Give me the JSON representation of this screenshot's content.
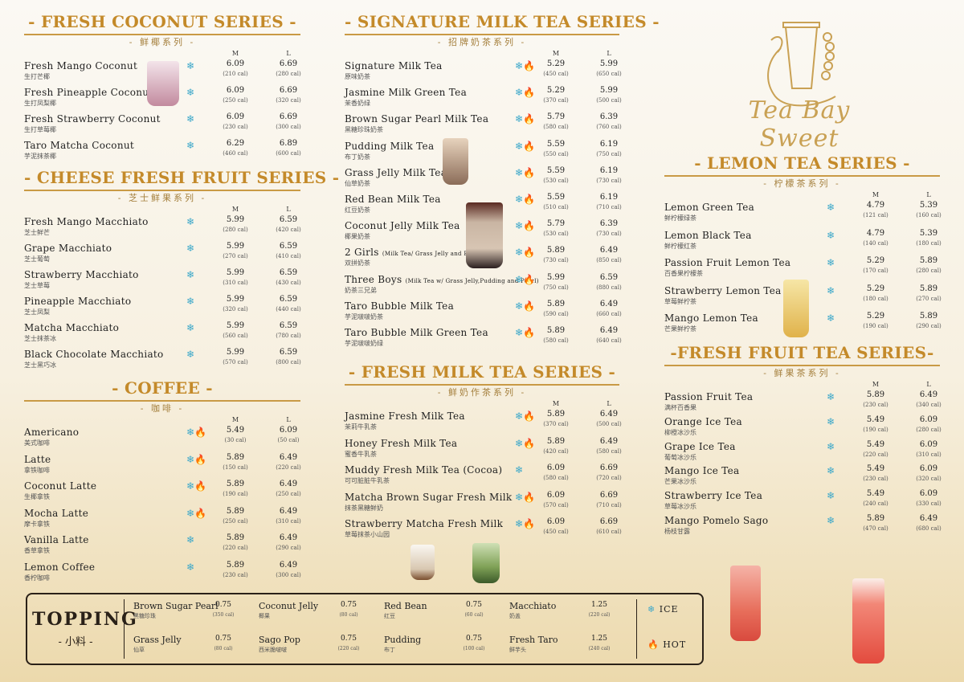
{
  "sections": {
    "coconut": {
      "title": "- FRESH COCONUT SERIES -",
      "subtitle": "- 鲜椰系列 -",
      "size_m": "M",
      "size_l": "L",
      "items": [
        {
          "en": "Fresh Mango Coconut",
          "zh": "生打芒椰",
          "pm": "6.09",
          "cm": "(210 cal)",
          "pl": "6.69",
          "cl": "(280 cal)",
          "icons": "❄"
        },
        {
          "en": "Fresh Pineapple Coconut",
          "zh": "生打凤梨椰",
          "pm": "6.09",
          "cm": "(250 cal)",
          "pl": "6.69",
          "cl": "(320 cal)",
          "icons": "❄"
        },
        {
          "en": "Fresh Strawberry Coconut",
          "zh": "生打草莓椰",
          "pm": "6.09",
          "cm": "(230 cal)",
          "pl": "6.69",
          "cl": "(300 cal)",
          "icons": "❄"
        },
        {
          "en": "Taro Matcha Coconut",
          "zh": "芋泥抹茶椰",
          "pm": "6.29",
          "cm": "(460 cal)",
          "pl": "6.89",
          "cl": "(600 cal)",
          "icons": "❄"
        }
      ]
    },
    "cheese": {
      "title": "- CHEESE FRESH FRUIT SERIES -",
      "subtitle": "- 芝士鲜果系列 -",
      "size_m": "M",
      "size_l": "L",
      "items": [
        {
          "en": "Fresh Mango Macchiato",
          "zh": "芝士鲜芒",
          "pm": "5.99",
          "cm": "(280 cal)",
          "pl": "6.59",
          "cl": "(420 cal)",
          "icons": "❄"
        },
        {
          "en": "Grape Macchiato",
          "zh": "芝士葡萄",
          "pm": "5.99",
          "cm": "(270 cal)",
          "pl": "6.59",
          "cl": "(410 cal)",
          "icons": "❄"
        },
        {
          "en": "Strawberry Macchiato",
          "zh": "芝士草莓",
          "pm": "5.99",
          "cm": "(310 cal)",
          "pl": "6.59",
          "cl": "(430 cal)",
          "icons": "❄"
        },
        {
          "en": "Pineapple Macchiato",
          "zh": "芝士凤梨",
          "pm": "5.99",
          "cm": "(320 cal)",
          "pl": "6.59",
          "cl": "(440 cal)",
          "icons": "❄"
        },
        {
          "en": "Matcha Macchiato",
          "zh": "芝士抹茶冰",
          "pm": "5.99",
          "cm": "(560 cal)",
          "pl": "6.59",
          "cl": "(780 cal)",
          "icons": "❄"
        },
        {
          "en": "Black Chocolate Macchiato",
          "zh": "芝士黑巧冰",
          "pm": "5.99",
          "cm": "(570 cal)",
          "pl": "6.59",
          "cl": "(800 cal)",
          "icons": "❄"
        }
      ]
    },
    "coffee": {
      "title": "- COFFEE -",
      "subtitle": "- 咖啡 -",
      "size_m": "M",
      "size_l": "L",
      "items": [
        {
          "en": "Americano",
          "zh": "美式咖啡",
          "pm": "5.49",
          "cm": "(30 cal)",
          "pl": "6.09",
          "cl": "(50 cal)",
          "icons": "❄🔥"
        },
        {
          "en": "Latte",
          "zh": "拿铁咖啡",
          "pm": "5.89",
          "cm": "(150 cal)",
          "pl": "6.49",
          "cl": "(220 cal)",
          "icons": "❄🔥"
        },
        {
          "en": "Coconut Latte",
          "zh": "生椰拿铁",
          "pm": "5.89",
          "cm": "(190 cal)",
          "pl": "6.49",
          "cl": "(250 cal)",
          "icons": "❄🔥"
        },
        {
          "en": "Mocha Latte",
          "zh": "摩卡拿铁",
          "pm": "5.89",
          "cm": "(250 cal)",
          "pl": "6.49",
          "cl": "(310 cal)",
          "icons": "❄🔥"
        },
        {
          "en": "Vanilla Latte",
          "zh": "香草拿铁",
          "pm": "5.89",
          "cm": "(220 cal)",
          "pl": "6.49",
          "cl": "(290 cal)",
          "icons": "❄"
        },
        {
          "en": "Lemon Coffee",
          "zh": "香柠咖啡",
          "pm": "5.89",
          "cm": "(230 cal)",
          "pl": "6.49",
          "cl": "(300 cal)",
          "icons": "❄"
        }
      ]
    },
    "signature": {
      "title": "- SIGNATURE MILK TEA SERIES -",
      "subtitle": "- 招牌奶茶系列 -",
      "size_m": "M",
      "size_l": "L",
      "items": [
        {
          "en": "Signature Milk Tea",
          "zh": "原味奶茶",
          "pm": "5.29",
          "cm": "(450 cal)",
          "pl": "5.99",
          "cl": "(650 cal)",
          "icons": "❄🔥"
        },
        {
          "en": "Jasmine Milk Green Tea",
          "zh": "茉香奶绿",
          "pm": "5.29",
          "cm": "(370 cal)",
          "pl": "5.99",
          "cl": "(500 cal)",
          "icons": "❄🔥"
        },
        {
          "en": "Brown Sugar Pearl Milk Tea",
          "zh": "黑糖珍珠奶茶",
          "pm": "5.79",
          "cm": "(580 cal)",
          "pl": "6.39",
          "cl": "(760 cal)",
          "icons": "❄🔥"
        },
        {
          "en": "Pudding Milk Tea",
          "zh": "布丁奶茶",
          "pm": "5.59",
          "cm": "(550 cal)",
          "pl": "6.19",
          "cl": "(750 cal)",
          "icons": "❄🔥"
        },
        {
          "en": "Grass Jelly Milk Tea",
          "zh": "仙草奶茶",
          "pm": "5.59",
          "cm": "(530 cal)",
          "pl": "6.19",
          "cl": "(730 cal)",
          "icons": "❄🔥"
        },
        {
          "en": "Red Bean Milk Tea",
          "zh": "红豆奶茶",
          "pm": "5.59",
          "cm": "(510 cal)",
          "pl": "6.19",
          "cl": "(710 cal)",
          "icons": "❄🔥"
        },
        {
          "en": "Coconut Jelly Milk Tea",
          "zh": "椰果奶茶",
          "pm": "5.79",
          "cm": "(530 cal)",
          "pl": "6.39",
          "cl": "(730 cal)",
          "icons": "❄🔥"
        },
        {
          "en": "2 Girls",
          "note": "(Milk Tea/ Grass Jelly and Pearl)",
          "zh": "双拼奶茶",
          "pm": "5.89",
          "cm": "(730 cal)",
          "pl": "6.49",
          "cl": "(850 cal)",
          "icons": "❄🔥"
        },
        {
          "en": "Three Boys",
          "note": "(Milk Tea w/ Grass Jelly,Pudding and Pearl)",
          "zh": "奶茶三兄弟",
          "pm": "5.99",
          "cm": "(750 cal)",
          "pl": "6.59",
          "cl": "(880 cal)",
          "icons": "❄🔥"
        },
        {
          "en": "Taro Bubble Milk Tea",
          "zh": "芋泥啵啵奶茶",
          "pm": "5.89",
          "cm": "(590 cal)",
          "pl": "6.49",
          "cl": "(660 cal)",
          "icons": "❄🔥"
        },
        {
          "en": "Taro Bubble Milk Green Tea",
          "zh": "芋泥啵啵奶绿",
          "pm": "5.89",
          "cm": "(580 cal)",
          "pl": "6.49",
          "cl": "(640 cal)",
          "icons": "❄🔥"
        }
      ]
    },
    "freshmilk": {
      "title": "- FRESH MILK TEA SERIES -",
      "subtitle": "- 鲜奶作茶系列 -",
      "size_m": "M",
      "size_l": "L",
      "items": [
        {
          "en": "Jasmine Fresh Milk Tea",
          "zh": "茉莉牛乳茶",
          "pm": "5.89",
          "cm": "(370 cal)",
          "pl": "6.49",
          "cl": "(500 cal)",
          "icons": "❄🔥"
        },
        {
          "en": "Honey Fresh Milk Tea",
          "zh": "蜜香牛乳茶",
          "pm": "5.89",
          "cm": "(420 cal)",
          "pl": "6.49",
          "cl": "(580 cal)",
          "icons": "❄🔥"
        },
        {
          "en": "Muddy Fresh Milk Tea (Cocoa)",
          "zh": "可可脏脏牛乳茶",
          "pm": "6.09",
          "cm": "(580 cal)",
          "pl": "6.69",
          "cl": "(720 cal)",
          "icons": "❄"
        },
        {
          "en": "Matcha Brown Sugar Fresh Milk",
          "zh": "抹茶黑糖鲜奶",
          "pm": "6.09",
          "cm": "(570 cal)",
          "pl": "6.69",
          "cl": "(710 cal)",
          "icons": "❄🔥"
        },
        {
          "en": "Strawberry Matcha Fresh Milk",
          "zh": "草莓抹茶小山园",
          "pm": "6.09",
          "cm": "(450 cal)",
          "pl": "6.69",
          "cl": "(610 cal)",
          "icons": "❄🔥"
        }
      ]
    },
    "lemon": {
      "title": "- LEMON  TEA  SERIES -",
      "subtitle": "- 柠檬茶系列 -",
      "size_m": "M",
      "size_l": "L",
      "items": [
        {
          "en": "Lemon Green Tea",
          "zh": "鲜柠檬绿茶",
          "pm": "4.79",
          "cm": "(121 cal)",
          "pl": "5.39",
          "cl": "(160 cal)",
          "icons": "❄"
        },
        {
          "en": "Lemon Black Tea",
          "zh": "鲜柠檬红茶",
          "pm": "4.79",
          "cm": "(140 cal)",
          "pl": "5.39",
          "cl": "(180 cal)",
          "icons": "❄"
        },
        {
          "en": "Passion Fruit Lemon Tea",
          "zh": "百香果柠檬茶",
          "pm": "5.29",
          "cm": "(170 cal)",
          "pl": "5.89",
          "cl": "(280 cal)",
          "icons": "❄"
        },
        {
          "en": "Strawberry Lemon Tea",
          "zh": "草莓鲜柠茶",
          "pm": "5.29",
          "cm": "(180 cal)",
          "pl": "5.89",
          "cl": "(270 cal)",
          "icons": "❄"
        },
        {
          "en": "Mango Lemon Tea",
          "zh": "芒果鲜柠茶",
          "pm": "5.29",
          "cm": "(190 cal)",
          "pl": "5.89",
          "cl": "(290 cal)",
          "icons": "❄"
        }
      ]
    },
    "fruittea": {
      "title": "-FRESH FRUIT TEA SERIES-",
      "subtitle": "- 鲜果茶系列 -",
      "size_m": "M",
      "size_l": "L",
      "items": [
        {
          "en": "Passion Fruit Tea",
          "zh": "满杯百香果",
          "pm": "5.89",
          "cm": "(230 cal)",
          "pl": "6.49",
          "cl": "(340 cal)",
          "icons": "❄"
        },
        {
          "en": "Orange Ice Tea",
          "zh": "柳橙冰沙乐",
          "pm": "5.49",
          "cm": "(190 cal)",
          "pl": "6.09",
          "cl": "(280 cal)",
          "icons": "❄"
        },
        {
          "en": "Grape Ice Tea",
          "zh": "葡萄冰沙乐",
          "pm": "5.49",
          "cm": "(220 cal)",
          "pl": "6.09",
          "cl": "(310 cal)",
          "icons": "❄"
        },
        {
          "en": "Mango Ice Tea",
          "zh": "芒果冰沙乐",
          "pm": "5.49",
          "cm": "(230 cal)",
          "pl": "6.09",
          "cl": "(320 cal)",
          "icons": "❄"
        },
        {
          "en": "Strawberry Ice Tea",
          "zh": "草莓冰沙乐",
          "pm": "5.49",
          "cm": "(240 cal)",
          "pl": "6.09",
          "cl": "(330 cal)",
          "icons": "❄"
        },
        {
          "en": "Mango Pomelo Sago",
          "zh": "杨枝甘露",
          "pm": "5.89",
          "cm": "(470 cal)",
          "pl": "6.49",
          "cl": "(680 cal)",
          "icons": "❄"
        }
      ]
    }
  },
  "logo": {
    "text": "Tea Bay Sweet"
  },
  "topping": {
    "title": "TOPPING",
    "subtitle": "- 小料 -",
    "items": [
      {
        "en": "Brown Sugar Pearl",
        "zh": "黑糖珍珠",
        "price": "0.75",
        "cal": "(350 cal)"
      },
      {
        "en": "Grass Jelly",
        "zh": "仙草",
        "price": "0.75",
        "cal": "(80 cal)"
      },
      {
        "en": "Coconut Jelly",
        "zh": "椰果",
        "price": "0.75",
        "cal": "(80 cal)"
      },
      {
        "en": "Sago Pop",
        "zh": "西米脆啵啵",
        "price": "0.75",
        "cal": "(220 cal)"
      },
      {
        "en": "Red Bean",
        "zh": "红豆",
        "price": "0.75",
        "cal": "(60 cal)"
      },
      {
        "en": "Pudding",
        "zh": "布丁",
        "price": "0.75",
        "cal": "(100 cal)"
      },
      {
        "en": "Macchiato",
        "zh": "奶盖",
        "price": "1.25",
        "cal": "(220 cal)"
      },
      {
        "en": "Fresh Taro",
        "zh": "鲜芋头",
        "price": "1.25",
        "cal": "(240 cal)"
      }
    ]
  },
  "legend": {
    "ice": "ICE",
    "hot": "HOT",
    "ice_icon": "❄",
    "hot_icon": "🔥"
  },
  "colors": {
    "gold": "#c48a2a",
    "ice": "#3aa7c9",
    "hot": "#d84a1b"
  }
}
